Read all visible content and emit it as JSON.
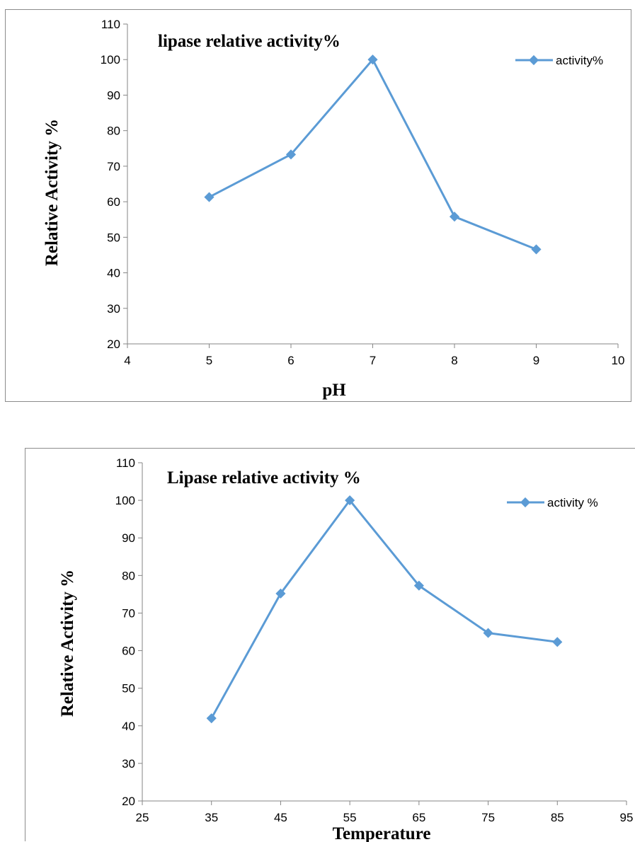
{
  "chart_data": [
    {
      "type": "line",
      "title": "lipase relative activity%",
      "xlabel": "pH",
      "ylabel": "Relative Activity %",
      "xlim": [
        4,
        10
      ],
      "ylim": [
        20,
        110
      ],
      "xticks": [
        4,
        5,
        6,
        7,
        8,
        9,
        10
      ],
      "yticks": [
        20,
        30,
        40,
        50,
        60,
        70,
        80,
        90,
        100,
        110
      ],
      "grid": false,
      "legend_position": "top-right",
      "color": "#5b9bd5",
      "series": [
        {
          "name": "activity%",
          "x": [
            5,
            6,
            7,
            8,
            9
          ],
          "values": [
            61.3,
            73.3,
            100,
            55.8,
            46.6
          ]
        }
      ]
    },
    {
      "type": "line",
      "title": "Lipase relative activity %",
      "xlabel": "Temperature",
      "ylabel": "Relative Activity  %",
      "xlim": [
        25,
        95
      ],
      "ylim": [
        20,
        110
      ],
      "xticks": [
        25,
        35,
        45,
        55,
        65,
        75,
        85,
        95
      ],
      "yticks": [
        20,
        30,
        40,
        50,
        60,
        70,
        80,
        90,
        100,
        110
      ],
      "grid": false,
      "legend_position": "top-right",
      "color": "#5b9bd5",
      "series": [
        {
          "name": "activity %",
          "x": [
            35,
            45,
            55,
            65,
            75,
            85
          ],
          "values": [
            42,
            75.2,
            100,
            77.3,
            64.7,
            62.3
          ]
        }
      ]
    }
  ]
}
